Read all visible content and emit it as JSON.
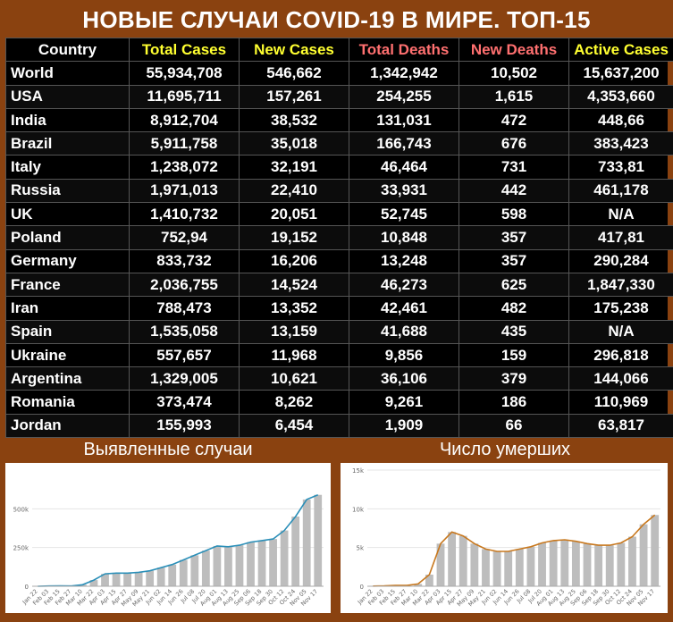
{
  "title": "НОВЫЕ СЛУЧАИ COVID-19 В МИРЕ. ТОП-15",
  "table": {
    "headers": [
      "Country",
      "Total Cases",
      "New Cases",
      "Total Deaths",
      "New Deaths",
      "Active Cases"
    ],
    "header_colors": [
      "#ffffff",
      "#ffff30",
      "#ffff30",
      "#ff7070",
      "#ff7070",
      "#ffff30"
    ],
    "rows": [
      [
        "World",
        "55,934,708",
        "546,662",
        "1,342,942",
        "10,502",
        "15,637,200"
      ],
      [
        "USA",
        "11,695,711",
        "157,261",
        "254,255",
        "1,615",
        "4,353,660"
      ],
      [
        "India",
        "8,912,704",
        "38,532",
        "131,031",
        "472",
        "448,66"
      ],
      [
        "Brazil",
        "5,911,758",
        "35,018",
        "166,743",
        "676",
        "383,423"
      ],
      [
        "Italy",
        "1,238,072",
        "32,191",
        "46,464",
        "731",
        "733,81"
      ],
      [
        "Russia",
        "1,971,013",
        "22,410",
        "33,931",
        "442",
        "461,178"
      ],
      [
        "UK",
        "1,410,732",
        "20,051",
        "52,745",
        "598",
        "N/A"
      ],
      [
        "Poland",
        "752,94",
        "19,152",
        "10,848",
        "357",
        "417,81"
      ],
      [
        "Germany",
        "833,732",
        "16,206",
        "13,248",
        "357",
        "290,284"
      ],
      [
        "France",
        "2,036,755",
        "14,524",
        "46,273",
        "625",
        "1,847,330"
      ],
      [
        "Iran",
        "788,473",
        "13,352",
        "42,461",
        "482",
        "175,238"
      ],
      [
        "Spain",
        "1,535,058",
        "13,159",
        "41,688",
        "435",
        "N/A"
      ],
      [
        "Ukraine",
        "557,657",
        "11,968",
        "9,856",
        "159",
        "296,818"
      ],
      [
        "Argentina",
        "1,329,005",
        "10,621",
        "36,106",
        "379",
        "144,066"
      ],
      [
        "Romania",
        "373,474",
        "8,262",
        "9,261",
        "186",
        "110,969"
      ],
      [
        "Jordan",
        "155,993",
        "6,454",
        "1,909",
        "66",
        "63,817"
      ]
    ]
  },
  "chart_data": [
    {
      "type": "bar",
      "title": "Выявленные случаи",
      "bar_color": "#bdbdbd",
      "line_color": "#2b8fb8",
      "ylim": [
        0,
        750000
      ],
      "yticks": [
        0,
        250000,
        500000
      ],
      "ytick_labels": [
        "0",
        "250k",
        "500k"
      ],
      "xticks": [
        "Jan 22",
        "Feb 03",
        "Feb 15",
        "Feb 27",
        "Mar 10",
        "Mar 22",
        "Apr 03",
        "Apr 15",
        "Apr 27",
        "May 09",
        "May 21",
        "Jun 02",
        "Jun 14",
        "Jun 26",
        "Jul 08",
        "Jul 20",
        "Aug 01",
        "Aug 13",
        "Aug 25",
        "Sep 06",
        "Sep 18",
        "Sep 30",
        "Oct 12",
        "Oct 24",
        "Nov 05",
        "Nov 17"
      ],
      "x": [
        "Jan 22",
        "Feb 03",
        "Feb 15",
        "Feb 27",
        "Mar 10",
        "Mar 22",
        "Apr 03",
        "Apr 15",
        "Apr 27",
        "May 09",
        "May 21",
        "Jun 02",
        "Jun 14",
        "Jun 26",
        "Jul 08",
        "Jul 20",
        "Aug 01",
        "Aug 13",
        "Aug 25",
        "Sep 06",
        "Sep 18",
        "Sep 30",
        "Oct 12",
        "Oct 24",
        "Nov 05",
        "Nov 17"
      ],
      "series": [
        {
          "values": [
            0,
            2000,
            3000,
            2000,
            10000,
            40000,
            80000,
            85000,
            85000,
            90000,
            100000,
            120000,
            140000,
            170000,
            200000,
            230000,
            260000,
            255000,
            265000,
            285000,
            295000,
            305000,
            360000,
            450000,
            560000,
            590000
          ]
        }
      ]
    },
    {
      "type": "bar",
      "title": "Число умерших",
      "bar_color": "#bdbdbd",
      "line_color": "#c8781e",
      "ylim": [
        0,
        15000
      ],
      "yticks": [
        0,
        5000,
        10000,
        15000
      ],
      "ytick_labels": [
        "0",
        "5k",
        "10k",
        "15k"
      ],
      "xticks": [
        "Jan 22",
        "Feb 03",
        "Feb 15",
        "Feb 27",
        "Mar 10",
        "Mar 22",
        "Apr 03",
        "Apr 15",
        "Apr 27",
        "May 09",
        "May 21",
        "Jun 02",
        "Jun 14",
        "Jun 26",
        "Jul 08",
        "Jul 20",
        "Aug 01",
        "Aug 13",
        "Aug 25",
        "Sep 06",
        "Sep 18",
        "Sep 30",
        "Oct 12",
        "Oct 24",
        "Nov 05",
        "Nov 17"
      ],
      "x": [
        "Jan 22",
        "Feb 03",
        "Feb 15",
        "Feb 27",
        "Mar 10",
        "Mar 22",
        "Apr 03",
        "Apr 15",
        "Apr 27",
        "May 09",
        "May 21",
        "Jun 02",
        "Jun 14",
        "Jun 26",
        "Jul 08",
        "Jul 20",
        "Aug 01",
        "Aug 13",
        "Aug 25",
        "Sep 06",
        "Sep 18",
        "Sep 30",
        "Oct 12",
        "Oct 24",
        "Nov 05",
        "Nov 17"
      ],
      "series": [
        {
          "values": [
            20,
            50,
            100,
            100,
            300,
            1500,
            5500,
            7000,
            6500,
            5500,
            4800,
            4500,
            4500,
            4800,
            5100,
            5600,
            5900,
            6000,
            5800,
            5500,
            5300,
            5300,
            5600,
            6400,
            8000,
            9200
          ]
        }
      ]
    }
  ]
}
